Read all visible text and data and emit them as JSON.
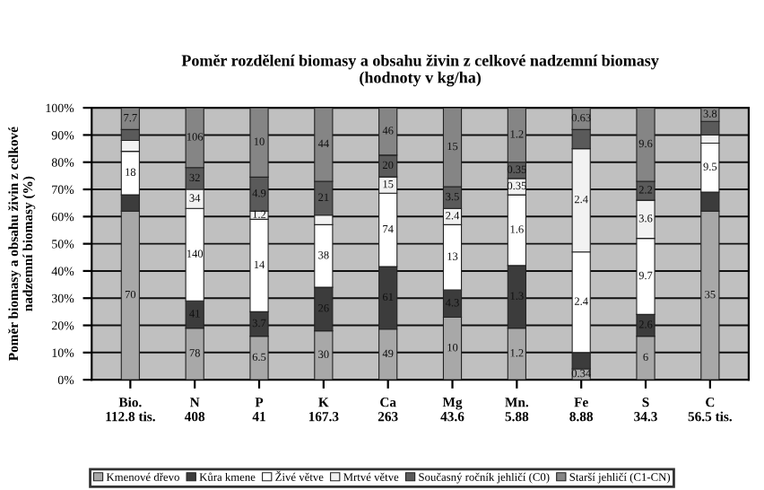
{
  "chart_data": {
    "type": "bar",
    "stacked": true,
    "title": "Poměr rozdělení biomasy a obsahu živin z celkové nadzemní biomasy\n(hodnoty v kg/ha)",
    "ylabel": "Poměr biomasy a obsahu živin z celkové\nnadzemní biomasy (%)",
    "categories": [
      "Bio.\n112.8 tis.",
      "N\n408",
      "P\n41",
      "K\n167.3",
      "Ca\n263",
      "Mg\n43.6",
      "Mn.\n5.88",
      "Fe\n8.88",
      "S\n34.3",
      "C\n56.5 tis."
    ],
    "series": [
      {
        "name": "Kmenové dřevo",
        "color": "#a8a8a8",
        "values": [
          62,
          19,
          16,
          18,
          18.6,
          23,
          19,
          4,
          16,
          62
        ]
      },
      {
        "name": "Kůra kmene",
        "color": "#3c3c3c",
        "values": [
          6,
          10,
          9,
          16,
          23,
          10,
          23,
          6,
          8,
          7
        ]
      },
      {
        "name": "Živé větve",
        "color": "#ffffff",
        "values": [
          16,
          34,
          34,
          23,
          27,
          24,
          26,
          37,
          28,
          18
        ]
      },
      {
        "name": "Mrtvé větve",
        "color": "#f2f2f2",
        "values": [
          4,
          7,
          3,
          3.5,
          6,
          6,
          6,
          38,
          14,
          3
        ]
      },
      {
        "name": "Současný ročník jehličí (C0)",
        "color": "#5a5a5a",
        "values": [
          4,
          8,
          12.5,
          12.5,
          8,
          8,
          6,
          7,
          7,
          5
        ]
      },
      {
        "name": "Starší jehličí (C1-CN)",
        "color": "#858585",
        "values": [
          8,
          22,
          25.5,
          27,
          17.4,
          29,
          20,
          8,
          27,
          5
        ]
      }
    ],
    "annotations": [
      {
        "text": "70",
        "x": "Bio.\n112.8 tis.",
        "y": 31
      },
      {
        "text": "18",
        "x": "Bio.\n112.8 tis.",
        "y": 76
      },
      {
        "text": "7.7",
        "x": "Bio.\n112.8 tis.",
        "y": 96
      },
      {
        "text": "78",
        "x": "N\n408",
        "y": 9.5
      },
      {
        "text": "41",
        "x": "N\n408",
        "y": 24
      },
      {
        "text": "140",
        "x": "N\n408",
        "y": 46
      },
      {
        "text": "34",
        "x": "N\n408",
        "y": 66.5
      },
      {
        "text": "32",
        "x": "N\n408",
        "y": 74
      },
      {
        "text": "106",
        "x": "N\n408",
        "y": 89
      },
      {
        "text": "6.5",
        "x": "P\n41",
        "y": 8
      },
      {
        "text": "3.7",
        "x": "P\n41",
        "y": 20.5
      },
      {
        "text": "14",
        "x": "P\n41",
        "y": 42
      },
      {
        "text": "1.2",
        "x": "P\n41",
        "y": 60.5
      },
      {
        "text": "4.9",
        "x": "P\n41",
        "y": 68.25
      },
      {
        "text": "10",
        "x": "P\n41",
        "y": 87.25
      },
      {
        "text": "30",
        "x": "K\n167.3",
        "y": 9
      },
      {
        "text": "26",
        "x": "K\n167.3",
        "y": 26
      },
      {
        "text": "38",
        "x": "K\n167.3",
        "y": 45.5
      },
      {
        "text": "21",
        "x": "K\n167.3",
        "y": 66.75
      },
      {
        "text": "44",
        "x": "K\n167.3",
        "y": 86.5
      },
      {
        "text": "49",
        "x": "Ca\n263",
        "y": 9.3
      },
      {
        "text": "61",
        "x": "Ca\n263",
        "y": 30.1
      },
      {
        "text": "74",
        "x": "Ca\n263",
        "y": 55.1
      },
      {
        "text": "15",
        "x": "Ca\n263",
        "y": 71.6
      },
      {
        "text": "20",
        "x": "Ca\n263",
        "y": 78.6
      },
      {
        "text": "46",
        "x": "Ca\n263",
        "y": 91.3
      },
      {
        "text": "10",
        "x": "Mg\n43.6",
        "y": 11.5
      },
      {
        "text": "4.3",
        "x": "Mg\n43.6",
        "y": 28
      },
      {
        "text": "13",
        "x": "Mg\n43.6",
        "y": 45
      },
      {
        "text": "2.4",
        "x": "Mg\n43.6",
        "y": 60
      },
      {
        "text": "3.5",
        "x": "Mg\n43.6",
        "y": 67
      },
      {
        "text": "15",
        "x": "Mg\n43.6",
        "y": 85.5
      },
      {
        "text": "1.2",
        "x": "Mn.\n5.88",
        "y": 9.5
      },
      {
        "text": "1.3",
        "x": "Mn.\n5.88",
        "y": 30.5
      },
      {
        "text": "1.6",
        "x": "Mn.\n5.88",
        "y": 55
      },
      {
        "text": "0.35",
        "x": "Mn.\n5.88",
        "y": 71
      },
      {
        "text": "0.35",
        "x": "Mn.\n5.88",
        "y": 77
      },
      {
        "text": "1.2",
        "x": "Mn.\n5.88",
        "y": 90
      },
      {
        "text": "0.34",
        "x": "Fe\n8.88",
        "y": 2
      },
      {
        "text": "2.4",
        "x": "Fe\n8.88",
        "y": 28.5
      },
      {
        "text": "2.4",
        "x": "Fe\n8.88",
        "y": 66
      },
      {
        "text": "0.63",
        "x": "Fe\n8.88",
        "y": 96
      },
      {
        "text": "6",
        "x": "S\n34.3",
        "y": 8
      },
      {
        "text": "2.6",
        "x": "S\n34.3",
        "y": 20
      },
      {
        "text": "9.7",
        "x": "S\n34.3",
        "y": 38
      },
      {
        "text": "3.6",
        "x": "S\n34.3",
        "y": 59
      },
      {
        "text": "2.2",
        "x": "S\n34.3",
        "y": 69.5
      },
      {
        "text": "9.6",
        "x": "S\n34.3",
        "y": 86.5
      },
      {
        "text": "35",
        "x": "C\n56.5 tis.",
        "y": 31
      },
      {
        "text": "9.5",
        "x": "C\n56.5 tis.",
        "y": 78
      },
      {
        "text": "3.8",
        "x": "C\n56.5 tis.",
        "y": 97.5
      }
    ],
    "ylim": [
      0,
      100
    ],
    "yticks": [
      {
        "value": 0,
        "label": "0%"
      },
      {
        "value": 10,
        "label": "10%"
      },
      {
        "value": 20,
        "label": "20%"
      },
      {
        "value": 30,
        "label": "30%"
      },
      {
        "value": 40,
        "label": "40%"
      },
      {
        "value": 50,
        "label": "50%"
      },
      {
        "value": 60,
        "label": "60%"
      },
      {
        "value": 70,
        "label": "70%"
      },
      {
        "value": 80,
        "label": "80%"
      },
      {
        "value": 90,
        "label": "90%"
      },
      {
        "value": 100,
        "label": "100%"
      }
    ],
    "grid": "y",
    "legend": "bottom"
  }
}
